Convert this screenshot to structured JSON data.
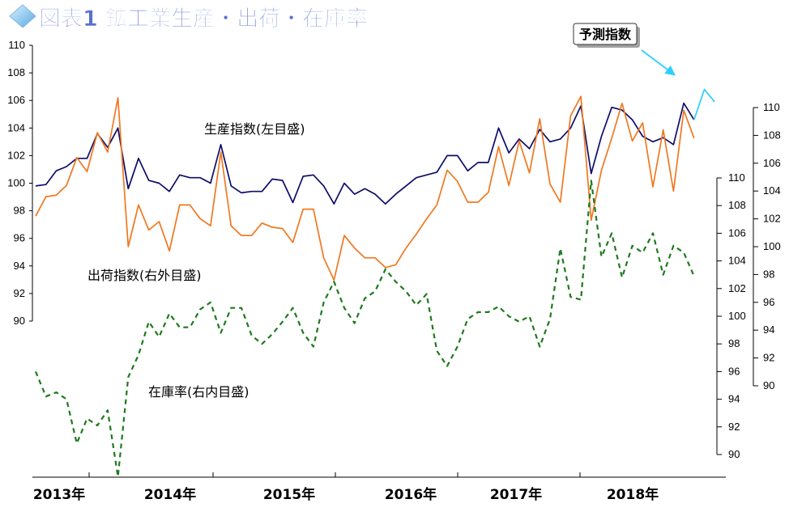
{
  "title": "図表1 鉱工業生産・出荷・在庫率",
  "colors": {
    "title": "#5a6fd0",
    "production": "#0d0d6b",
    "shipment": "#f07820",
    "inventory": "#1e7a1e",
    "forecast": "#2ccfff"
  },
  "chart_data": {
    "type": "line",
    "title": "図表1 鉱工業生産・出荷・在庫率",
    "x_labels": [
      "2013年",
      "2014年",
      "2015年",
      "2016年",
      "2017年",
      "2018年"
    ],
    "axes": {
      "left": {
        "min": 90,
        "max": 110,
        "ticks": [
          90,
          92,
          94,
          96,
          98,
          100,
          102,
          104,
          106,
          108,
          110
        ]
      },
      "right_outer": {
        "min": 90,
        "max": 110,
        "ticks": [
          90,
          92,
          94,
          96,
          98,
          100,
          102,
          104,
          106,
          108,
          110
        ]
      },
      "right_inner": {
        "min": 90,
        "max": 110,
        "ticks": [
          90,
          92,
          94,
          96,
          98,
          100,
          102,
          104,
          106,
          108,
          110
        ]
      }
    },
    "series": [
      {
        "name": "生産指数(左目盛)",
        "axis": "left",
        "style": "solid",
        "values": [
          99.8,
          99.9,
          100.9,
          101.2,
          101.8,
          101.8,
          103.6,
          102.6,
          104.0,
          99.6,
          101.8,
          100.2,
          100.0,
          99.4,
          100.6,
          100.4,
          100.4,
          100.0,
          102.8,
          99.8,
          99.3,
          99.4,
          99.4,
          100.3,
          100.2,
          98.6,
          100.5,
          100.6,
          99.8,
          98.5,
          100.0,
          99.2,
          99.6,
          99.2,
          98.5,
          99.2,
          99.8,
          100.4,
          100.6,
          100.8,
          102.0,
          102.0,
          100.9,
          101.5,
          101.5,
          104.0,
          102.2,
          103.2,
          102.5,
          103.9,
          103.0,
          103.2,
          104.0,
          105.6,
          100.7,
          103.4,
          105.5,
          105.3,
          104.6,
          103.4,
          103.0,
          103.3,
          102.8,
          105.8,
          104.6
        ]
      },
      {
        "name": "出荷指数(右外目盛)",
        "axis": "right_outer",
        "style": "solid",
        "values": [
          102.2,
          103.6,
          103.7,
          104.4,
          106.4,
          105.4,
          108.2,
          106.8,
          110.7,
          100.0,
          103.0,
          101.2,
          101.8,
          99.7,
          103.0,
          103.0,
          102.0,
          101.5,
          106.8,
          101.5,
          100.8,
          100.8,
          101.7,
          101.4,
          101.3,
          100.3,
          102.7,
          102.7,
          99.2,
          97.6,
          100.8,
          99.9,
          99.2,
          99.2,
          98.5,
          98.7,
          99.9,
          100.9,
          102.0,
          103.0,
          105.5,
          104.7,
          103.2,
          103.2,
          103.9,
          107.2,
          104.4,
          107.6,
          105.3,
          109.2,
          104.5,
          103.2,
          109.4,
          110.8,
          101.9,
          105.5,
          107.8,
          110.3,
          107.6,
          108.9,
          104.3,
          108.4,
          104.0,
          109.8,
          107.8
        ]
      },
      {
        "name": "在庫率(右内目盛)",
        "axis": "right_inner",
        "style": "dashed",
        "values": [
          96.0,
          94.2,
          94.5,
          94.0,
          90.8,
          92.6,
          92.1,
          93.2,
          88.4,
          95.6,
          97.2,
          99.6,
          98.5,
          100.2,
          99.2,
          99.2,
          100.5,
          101.0,
          98.8,
          100.6,
          100.6,
          98.6,
          98.0,
          98.7,
          99.6,
          100.6,
          98.8,
          97.8,
          101.0,
          102.5,
          100.6,
          99.5,
          101.3,
          101.8,
          103.4,
          102.5,
          101.8,
          100.8,
          101.6,
          97.5,
          96.4,
          97.8,
          99.8,
          100.3,
          100.3,
          100.7,
          100.0,
          99.6,
          100.0,
          97.8,
          99.8,
          104.9,
          101.4,
          101.2,
          109.8,
          104.3,
          106.0,
          102.8,
          105.1,
          104.6,
          106.0,
          103.0,
          105.1,
          104.6,
          102.9
        ]
      },
      {
        "name": "予測指数",
        "axis": "left",
        "style": "solid",
        "values": [
          104.6,
          106.8,
          105.9
        ]
      }
    ],
    "annotations": [
      "生産指数(左目盛)",
      "出荷指数(右外目盛)",
      "在庫率(右内目盛)",
      "予測指数"
    ]
  }
}
